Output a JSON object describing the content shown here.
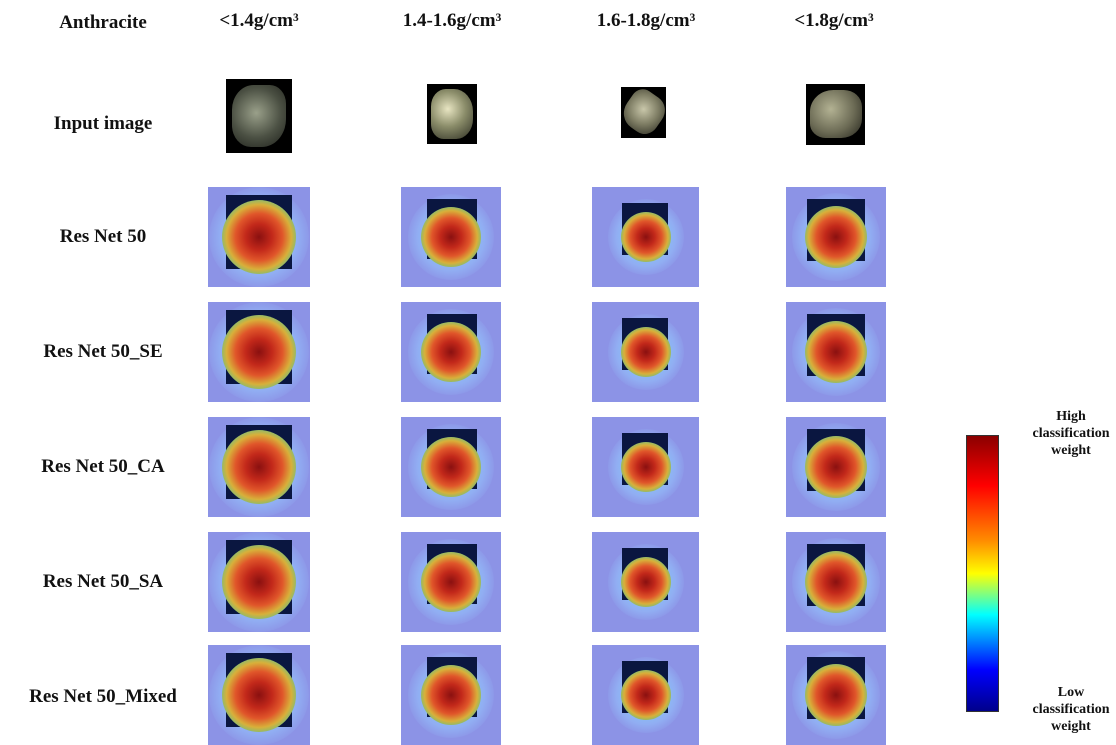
{
  "header": {
    "corner_label": "Anthracite",
    "columns": [
      "<1.4g/cm³",
      "1.4-1.6g/cm³",
      "1.6-1.8g/cm³",
      "<1.8g/cm³"
    ]
  },
  "rows": [
    {
      "label": "Input image"
    },
    {
      "label": "Res Net 50"
    },
    {
      "label": "Res Net 50_SE"
    },
    {
      "label": "Res Net 50_CA"
    },
    {
      "label": "Res Net 50_SA"
    },
    {
      "label": "Res Net 50_Mixed"
    }
  ],
  "colorbar": {
    "high_label": "High classification weight",
    "low_label": "Low classification weight",
    "high_lines": [
      "High",
      "classification",
      "weight"
    ],
    "low_lines": [
      "Low",
      "classification",
      "weight"
    ],
    "colors": [
      "#8b0000",
      "#ff0000",
      "#ff8c00",
      "#ffff00",
      "#00ffff",
      "#0000ff",
      "#00008b"
    ]
  }
}
